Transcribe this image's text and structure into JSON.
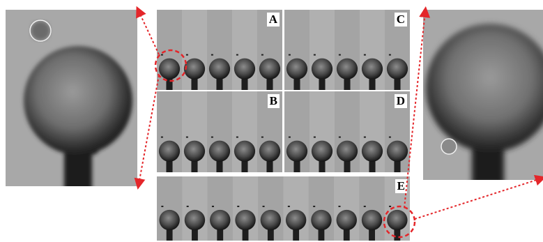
{
  "panels": [
    {
      "id": "A",
      "label": "A",
      "drops": 5
    },
    {
      "id": "C",
      "label": "C",
      "drops": 5
    },
    {
      "id": "B",
      "label": "B",
      "drops": 5
    },
    {
      "id": "D",
      "label": "D",
      "drops": 5
    },
    {
      "id": "E",
      "label": "E",
      "drops": 10
    }
  ],
  "colors": {
    "frame_bg": "#a9a9a9",
    "drop": "#1e1e1e",
    "highlight": "#e4262a",
    "marker": "#e6e6e6"
  }
}
